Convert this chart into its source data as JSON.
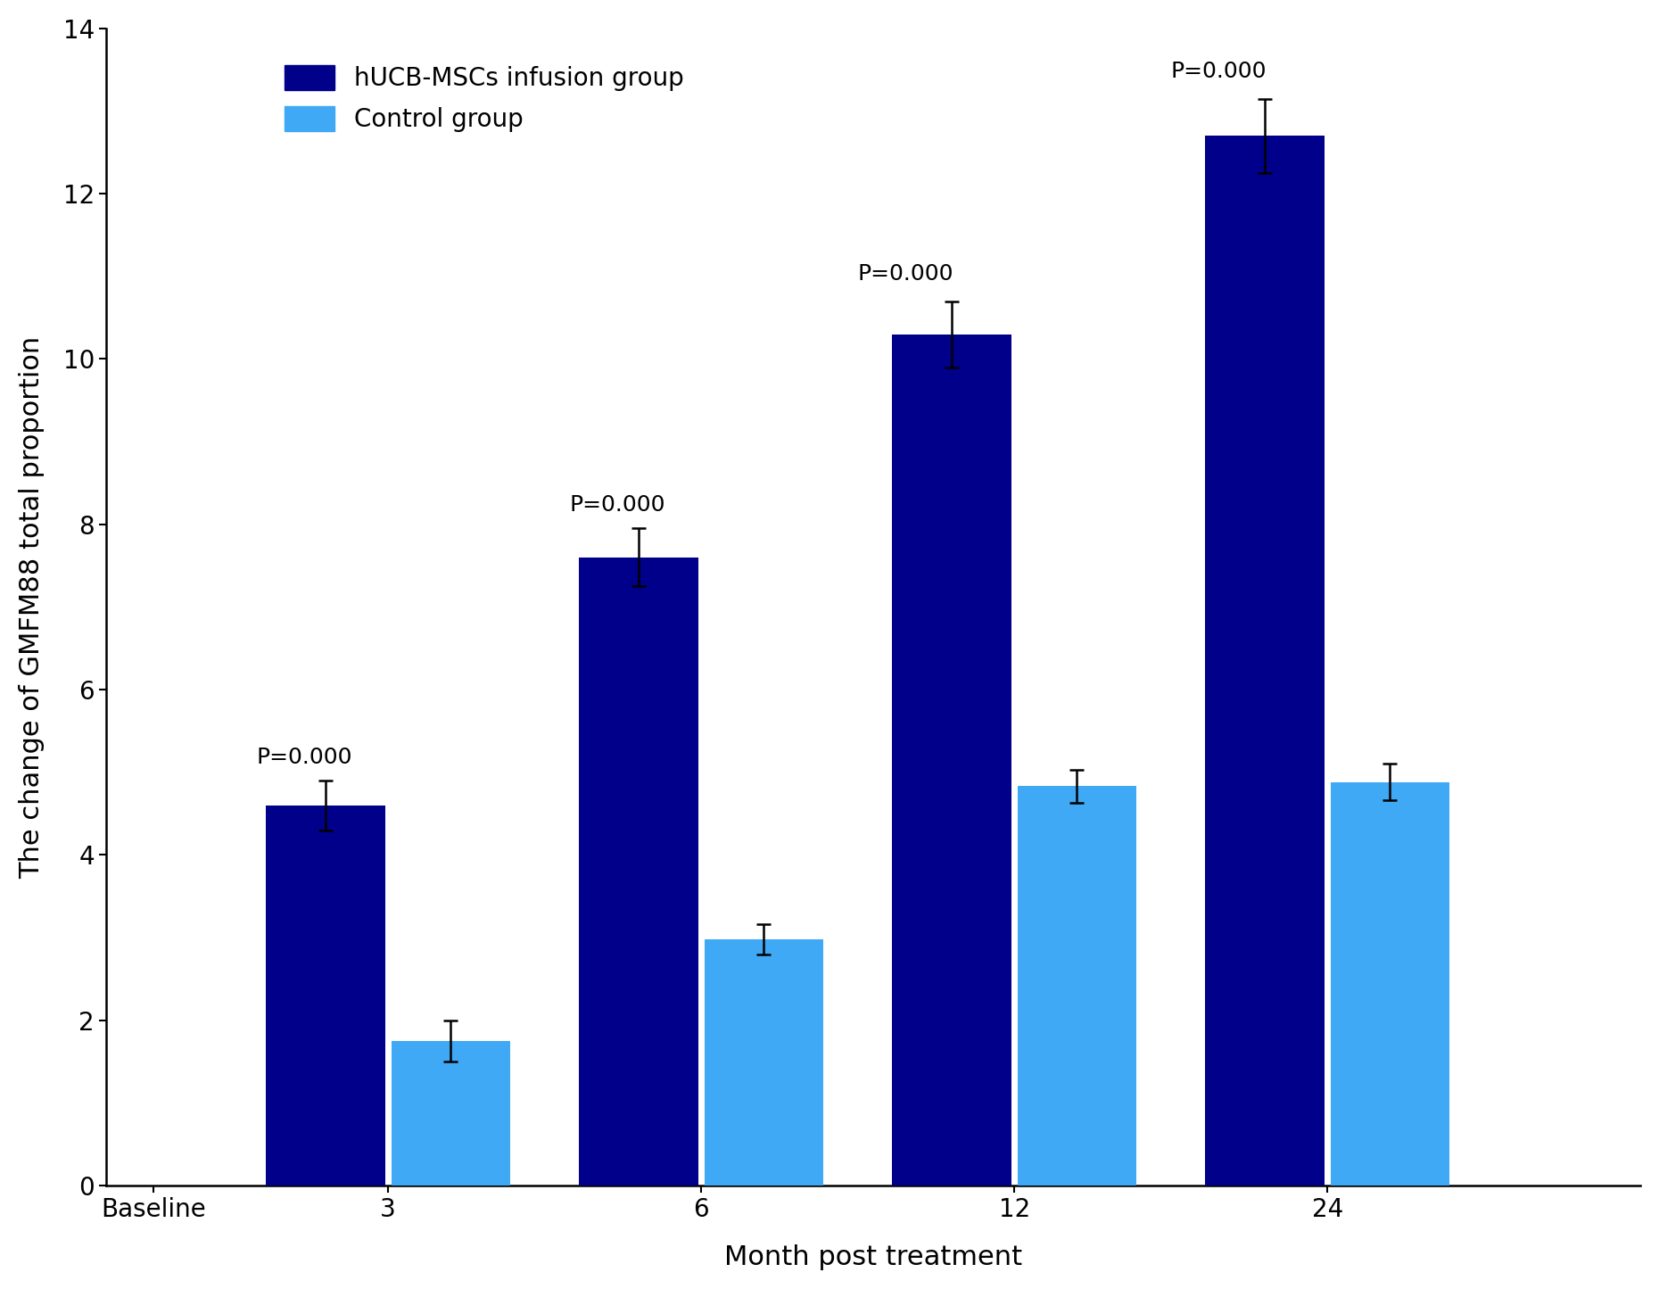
{
  "months": [
    3,
    6,
    12,
    24
  ],
  "hucb_values": [
    4.6,
    7.6,
    10.3,
    12.7
  ],
  "hucb_errors": [
    0.3,
    0.35,
    0.4,
    0.45
  ],
  "control_values": [
    1.75,
    2.98,
    4.83,
    4.88
  ],
  "control_errors": [
    0.25,
    0.18,
    0.2,
    0.22
  ],
  "hucb_color": "#00008B",
  "control_color": "#3fa9f5",
  "bar_width": 0.38,
  "ylim": [
    0,
    14
  ],
  "yticks": [
    0,
    2,
    4,
    6,
    8,
    10,
    12,
    14
  ],
  "xlabel": "Month post treatment",
  "ylabel": "The change of GMFM88 total proportion",
  "legend_labels": [
    "hUCB-MSCs infusion group",
    "Control group"
  ],
  "p_labels": [
    "P=0.000",
    "P=0.000",
    "P=0.000",
    "P=0.000"
  ],
  "x_tick_labels": [
    "Baseline",
    "3",
    "6",
    "12",
    "24"
  ],
  "axis_label_fontsize": 22,
  "tick_fontsize": 20,
  "legend_fontsize": 20,
  "p_fontsize": 18,
  "background_color": "#ffffff"
}
